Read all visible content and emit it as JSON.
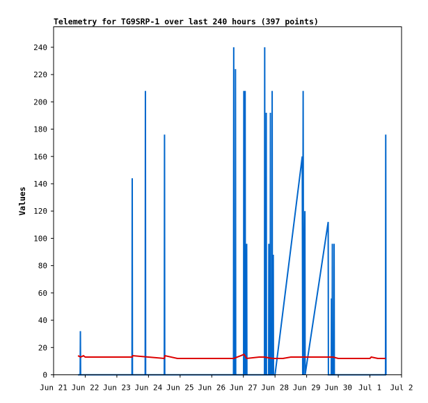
{
  "chart_data": {
    "type": "line",
    "title": "Telemetry for TG9SRP-1 over last 240 hours (397 points)",
    "xlabel": "",
    "ylabel": "Values",
    "xlim": [
      "2021-06-21T00:00",
      "2021-07-02T00:00"
    ],
    "ylim": [
      0,
      255
    ],
    "x_ticks": [
      {
        "x": "2021-06-21T00:00",
        "label": "Jun 21"
      },
      {
        "x": "2021-06-22T00:00",
        "label": "Jun 22"
      },
      {
        "x": "2021-06-23T00:00",
        "label": "Jun 23"
      },
      {
        "x": "2021-06-24T00:00",
        "label": "Jun 24"
      },
      {
        "x": "2021-06-25T00:00",
        "label": "Jun 25"
      },
      {
        "x": "2021-06-26T00:00",
        "label": "Jun 26"
      },
      {
        "x": "2021-06-27T00:00",
        "label": "Jun 27"
      },
      {
        "x": "2021-06-28T00:00",
        "label": "Jun 28"
      },
      {
        "x": "2021-06-29T00:00",
        "label": "Jun 29"
      },
      {
        "x": "2021-06-30T00:00",
        "label": "Jun 30"
      },
      {
        "x": "2021-07-01T00:00",
        "label": "Jul 1"
      },
      {
        "x": "2021-07-02T00:00",
        "label": "Jul 2"
      }
    ],
    "y_ticks": [
      0,
      20,
      40,
      60,
      80,
      100,
      120,
      140,
      160,
      180,
      200,
      220,
      240
    ],
    "grid": false,
    "legend": "none",
    "series": [
      {
        "color": "#0066cc",
        "points": [
          [
            "2021-06-21T18:30",
            0
          ],
          [
            "2021-06-21T20:10",
            0
          ],
          [
            "2021-06-21T20:20",
            32
          ],
          [
            "2021-06-21T20:30",
            0
          ],
          [
            "2021-06-23T11:30",
            0
          ],
          [
            "2021-06-23T11:40",
            144
          ],
          [
            "2021-06-23T11:50",
            0
          ],
          [
            "2021-06-23T21:30",
            0
          ],
          [
            "2021-06-23T21:40",
            208
          ],
          [
            "2021-06-23T21:50",
            0
          ],
          [
            "2021-06-24T12:00",
            0
          ],
          [
            "2021-06-24T12:10",
            176
          ],
          [
            "2021-06-24T12:20",
            0
          ],
          [
            "2021-06-26T16:30",
            0
          ],
          [
            "2021-06-26T16:40",
            240
          ],
          [
            "2021-06-26T16:50",
            0
          ],
          [
            "2021-06-26T17:50",
            0
          ],
          [
            "2021-06-26T18:00",
            224
          ],
          [
            "2021-06-26T18:10",
            0
          ],
          [
            "2021-06-27T00:10",
            0
          ],
          [
            "2021-06-27T00:20",
            208
          ],
          [
            "2021-06-27T00:30",
            0
          ],
          [
            "2021-06-27T01:10",
            0
          ],
          [
            "2021-06-27T01:20",
            208
          ],
          [
            "2021-06-27T01:30",
            0
          ],
          [
            "2021-06-27T02:20",
            0
          ],
          [
            "2021-06-27T02:30",
            96
          ],
          [
            "2021-06-27T02:40",
            0
          ],
          [
            "2021-06-27T16:00",
            0
          ],
          [
            "2021-06-27T16:10",
            240
          ],
          [
            "2021-06-27T16:20",
            0
          ],
          [
            "2021-06-27T17:10",
            0
          ],
          [
            "2021-06-27T17:20",
            192
          ],
          [
            "2021-06-27T17:30",
            0
          ],
          [
            "2021-06-27T19:10",
            0
          ],
          [
            "2021-06-27T19:20",
            96
          ],
          [
            "2021-06-27T19:30",
            0
          ],
          [
            "2021-06-27T20:20",
            0
          ],
          [
            "2021-06-27T20:30",
            192
          ],
          [
            "2021-06-27T20:40",
            0
          ],
          [
            "2021-06-27T21:40",
            0
          ],
          [
            "2021-06-27T21:50",
            208
          ],
          [
            "2021-06-27T22:00",
            0
          ],
          [
            "2021-06-27T22:30",
            0
          ],
          [
            "2021-06-27T22:40",
            88
          ],
          [
            "2021-06-27T22:50",
            0
          ],
          [
            "2021-06-28T00:00",
            0
          ],
          [
            "2021-06-28T20:40",
            160
          ],
          [
            "2021-06-28T21:00",
            0
          ],
          [
            "2021-06-28T21:20",
            208
          ],
          [
            "2021-06-28T21:40",
            0
          ],
          [
            "2021-06-28T22:40",
            120
          ],
          [
            "2021-06-28T22:50",
            0
          ],
          [
            "2021-06-29T16:20",
            112
          ],
          [
            "2021-06-29T16:30",
            0
          ],
          [
            "2021-06-29T18:40",
            0
          ],
          [
            "2021-06-29T18:50",
            56
          ],
          [
            "2021-06-29T19:00",
            0
          ],
          [
            "2021-06-29T19:20",
            0
          ],
          [
            "2021-06-29T19:30",
            96
          ],
          [
            "2021-06-29T19:40",
            0
          ],
          [
            "2021-06-29T20:40",
            0
          ],
          [
            "2021-06-29T20:50",
            96
          ],
          [
            "2021-06-29T21:00",
            0
          ],
          [
            "2021-07-01T11:50",
            0
          ],
          [
            "2021-07-01T12:00",
            176
          ],
          [
            "2021-07-01T12:10",
            0
          ]
        ]
      },
      {
        "color": "#dd0000",
        "points": [
          [
            "2021-06-21T18:30",
            14
          ],
          [
            "2021-06-21T20:30",
            13
          ],
          [
            "2021-06-21T22:40",
            14
          ],
          [
            "2021-06-22T00:00",
            13
          ],
          [
            "2021-06-23T11:40",
            13
          ],
          [
            "2021-06-23T12:00",
            14
          ],
          [
            "2021-06-24T00:00",
            13
          ],
          [
            "2021-06-24T12:00",
            12
          ],
          [
            "2021-06-24T12:30",
            14
          ],
          [
            "2021-06-24T22:00",
            12
          ],
          [
            "2021-06-26T16:40",
            12
          ],
          [
            "2021-06-26T22:00",
            14
          ],
          [
            "2021-06-27T00:30",
            15
          ],
          [
            "2021-06-27T02:30",
            12
          ],
          [
            "2021-06-27T12:00",
            13
          ],
          [
            "2021-06-27T16:00",
            13
          ],
          [
            "2021-06-27T22:00",
            12
          ],
          [
            "2021-06-28T06:00",
            12
          ],
          [
            "2021-06-28T12:00",
            13
          ],
          [
            "2021-06-28T20:00",
            13
          ],
          [
            "2021-06-29T00:00",
            13
          ],
          [
            "2021-06-29T12:00",
            13
          ],
          [
            "2021-06-29T20:00",
            13
          ],
          [
            "2021-06-30T00:00",
            12
          ],
          [
            "2021-06-30T12:00",
            12
          ],
          [
            "2021-07-01T00:00",
            12
          ],
          [
            "2021-07-01T01:00",
            13
          ],
          [
            "2021-07-01T06:00",
            12
          ],
          [
            "2021-07-01T12:00",
            12
          ]
        ]
      }
    ]
  }
}
